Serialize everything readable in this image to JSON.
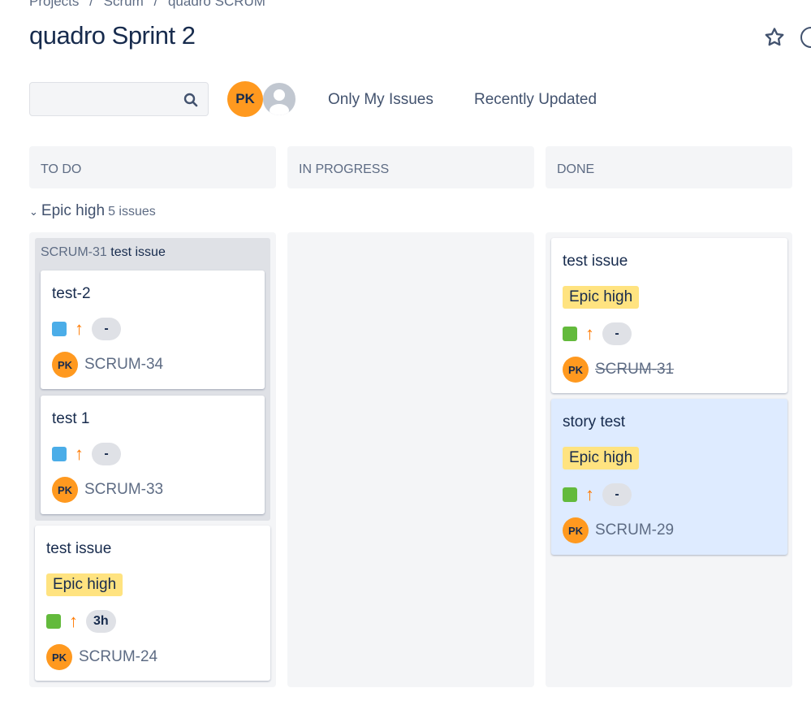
{
  "breadcrumbs": [
    "Projects",
    "/",
    "Scrum",
    "/",
    "quadro SCRUM"
  ],
  "title": "quadro Sprint 2",
  "search": {
    "placeholder": "",
    "icon": "search-icon"
  },
  "user_avatar": "PK",
  "filters": [
    "Only My Issues",
    "Recently Updated"
  ],
  "columns": [
    "TO DO",
    "IN PROGRESS",
    "DONE"
  ],
  "swimlane": {
    "name": "Epic high",
    "count": "5 issues"
  },
  "colors": {
    "avatar": "#ff991f",
    "epic": "#ffe380",
    "subtask": "#4bade8",
    "story": "#63ba3c",
    "priority": "#ff7a00",
    "selected_card": "#deebff"
  },
  "todo": {
    "parent": {
      "key": "SCRUM-31",
      "summary": "test issue"
    },
    "subtasks": [
      {
        "summary": "test-2",
        "estimate": "-",
        "key": "SCRUM-34",
        "avatar": "PK"
      },
      {
        "summary": "test 1",
        "estimate": "-",
        "key": "SCRUM-33",
        "avatar": "PK"
      }
    ],
    "card": {
      "summary": "test issue",
      "epic": "Epic high",
      "estimate": "3h",
      "key": "SCRUM-24",
      "avatar": "PK"
    }
  },
  "done": [
    {
      "summary": "test issue",
      "epic": "Epic high",
      "estimate": "-",
      "key": "SCRUM-31",
      "avatar": "PK"
    },
    {
      "summary": "story test",
      "epic": "Epic high",
      "estimate": "-",
      "key": "SCRUM-29",
      "avatar": "PK"
    }
  ]
}
